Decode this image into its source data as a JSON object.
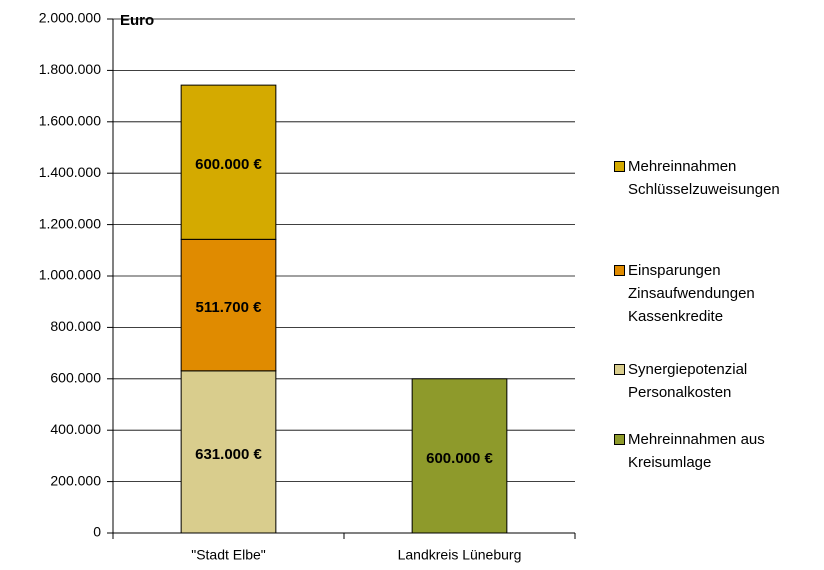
{
  "chart_data": {
    "type": "stacked_bar",
    "y_axis_label": "Euro",
    "categories": [
      "\"Stadt Elbe\"",
      "Landkreis Lüneburg"
    ],
    "series": [
      {
        "name": "Synergiepotenzial\nPersonalkosten",
        "color": "#d9cd8d",
        "values": [
          631000,
          null
        ],
        "value_labels": [
          "631.000 €",
          null
        ]
      },
      {
        "name": "Einsparungen\nZinsaufwendungen\nKassenkredite",
        "color": "#e08b00",
        "values": [
          511700,
          null
        ],
        "value_labels": [
          "511.700 €",
          null
        ]
      },
      {
        "name": "Mehreinnahmen\nSchlüsselzuweisungen",
        "color": "#d4aa00",
        "values": [
          600000,
          null
        ],
        "value_labels": [
          "600.000 €",
          null
        ]
      },
      {
        "name": "Mehreinnahmen aus\nKreisumlage",
        "color": "#8e9a2b",
        "values": [
          null,
          600000
        ],
        "value_labels": [
          null,
          "600.000 €"
        ]
      }
    ],
    "ylim": [
      0,
      2000000
    ],
    "yticks": [
      0,
      {
        "value": 200000,
        "label": "200.000"
      },
      {
        "value": 400000,
        "label": "400.000"
      },
      {
        "value": 600000,
        "label": "600.000"
      },
      {
        "value": 800000,
        "label": "800.000"
      },
      {
        "value": 1000000,
        "label": "1.000.000"
      },
      {
        "value": 1200000,
        "label": "1.200.000"
      },
      {
        "value": 1400000,
        "label": "1.400.000"
      },
      {
        "value": 1600000,
        "label": "1.600.000"
      },
      {
        "value": 1800000,
        "label": "1.800.000"
      },
      {
        "value": 2000000,
        "label": "2.000.000"
      }
    ],
    "grid": true
  }
}
